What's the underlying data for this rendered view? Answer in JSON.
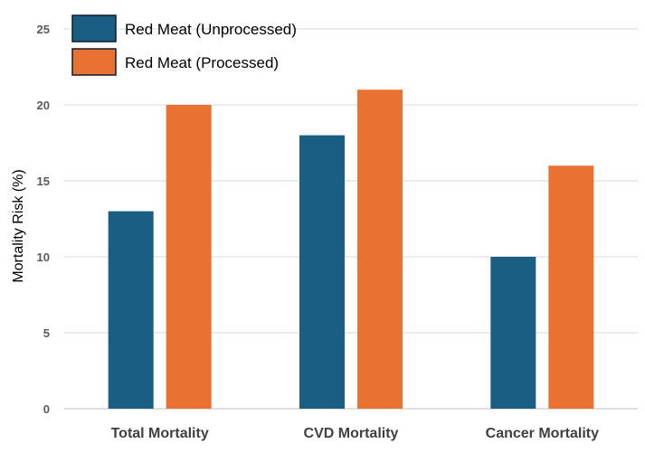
{
  "chart_data": {
    "type": "bar",
    "categories": [
      "Total Mortality",
      "CVD Mortality",
      "Cancer Mortality"
    ],
    "series": [
      {
        "name": "Red Meat (Unprocessed)",
        "values": [
          13,
          18,
          10
        ],
        "color": "#1b5e83"
      },
      {
        "name": "Red Meat (Processed)",
        "values": [
          20,
          21,
          16
        ],
        "color": "#e97132"
      }
    ],
    "title": "",
    "xlabel": "",
    "ylabel": "Mortality Risk (%)",
    "ylim": [
      0,
      25
    ],
    "yticks": [
      "0",
      "5",
      "10",
      "15",
      "20",
      "25"
    ],
    "grid": true,
    "legend_position": "top-left"
  }
}
